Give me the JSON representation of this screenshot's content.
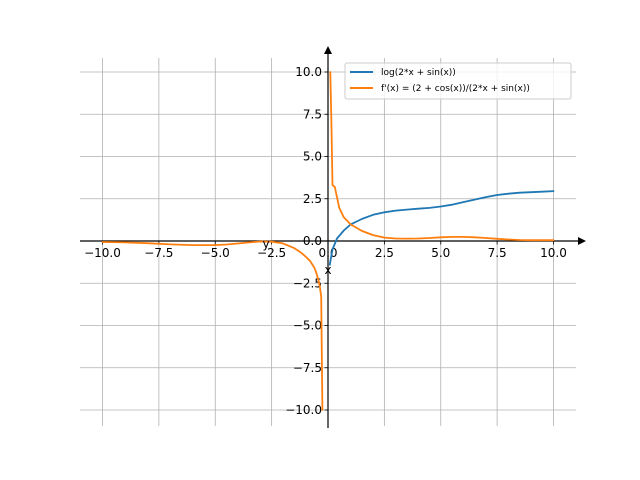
{
  "chart_data": {
    "type": "line",
    "title": "",
    "xlabel": "x",
    "xlabel_alt": "y",
    "ylabel": "",
    "xlim": [
      -11,
      11.5
    ],
    "ylim": [
      -11.2,
      11.5
    ],
    "grid": true,
    "legend_position": "top-right",
    "x_ticks": [
      -10,
      -7.5,
      -5,
      -2.5,
      0,
      2.5,
      5,
      7.5,
      10
    ],
    "x_tick_labels": [
      "−10.0",
      "−7.5",
      "−5.0",
      "−2.5",
      "0.0",
      "2.5",
      "5.0",
      "7.5",
      "10.0"
    ],
    "y_ticks": [
      -10,
      -7.5,
      -5,
      -2.5,
      0,
      2.5,
      5,
      7.5,
      10
    ],
    "y_tick_labels": [
      "−10.0",
      "−7.5",
      "−5.0",
      "−2.5",
      "0.0",
      "2.5",
      "5.0",
      "7.5",
      "10.0"
    ],
    "series": [
      {
        "name": "log(2*x + sin(x))",
        "color": "#1f77b4",
        "x": [
          0.08,
          0.2,
          0.4,
          0.7,
          1,
          1.5,
          2,
          2.5,
          3,
          3.5,
          4,
          4.5,
          5,
          5.5,
          6,
          6.5,
          7,
          7.5,
          8,
          8.5,
          9,
          9.5,
          10
        ],
        "y": [
          -1.4,
          -0.5,
          0.15,
          0.62,
          0.98,
          1.3,
          1.55,
          1.7,
          1.8,
          1.86,
          1.91,
          1.96,
          2.04,
          2.15,
          2.3,
          2.45,
          2.6,
          2.72,
          2.8,
          2.86,
          2.89,
          2.92,
          2.95
        ]
      },
      {
        "name": "f'(x) = (2 + cos(x))/(2*x + sin(x))",
        "color": "#ff7f0e",
        "segments": [
          {
            "x": [
              -10,
              -9,
              -8,
              -7,
              -6,
              -5,
              -4.5,
              -4,
              -3.5,
              -3,
              -2.5,
              -2,
              -1.5,
              -1.2,
              -1,
              -0.8,
              -0.6,
              -0.5,
              -0.4,
              -0.35,
              -0.3,
              -0.25
            ],
            "y": [
              -0.06,
              -0.08,
              -0.13,
              -0.2,
              -0.24,
              -0.24,
              -0.21,
              -0.15,
              -0.08,
              -0.03,
              -0.04,
              -0.14,
              -0.42,
              -0.68,
              -0.91,
              -1.17,
              -1.6,
              -1.95,
              -2.45,
              -2.8,
              -3.3,
              -10.0
            ]
          },
          {
            "x": [
              0.1,
              0.15,
              0.2,
              0.3,
              0.5,
              0.7,
              1,
              1.5,
              2,
              2.5,
              3,
              3.5,
              4,
              4.5,
              5,
              5.5,
              6,
              6.5,
              7,
              7.5,
              8,
              8.5,
              9,
              9.5,
              10
            ],
            "y": [
              10.0,
              7.0,
              3.3,
              3.2,
              1.95,
              1.4,
              0.98,
              0.6,
              0.35,
              0.2,
              0.15,
              0.14,
              0.15,
              0.18,
              0.22,
              0.24,
              0.24,
              0.22,
              0.18,
              0.13,
              0.09,
              0.06,
              0.05,
              0.05,
              0.05
            ]
          }
        ]
      }
    ]
  }
}
